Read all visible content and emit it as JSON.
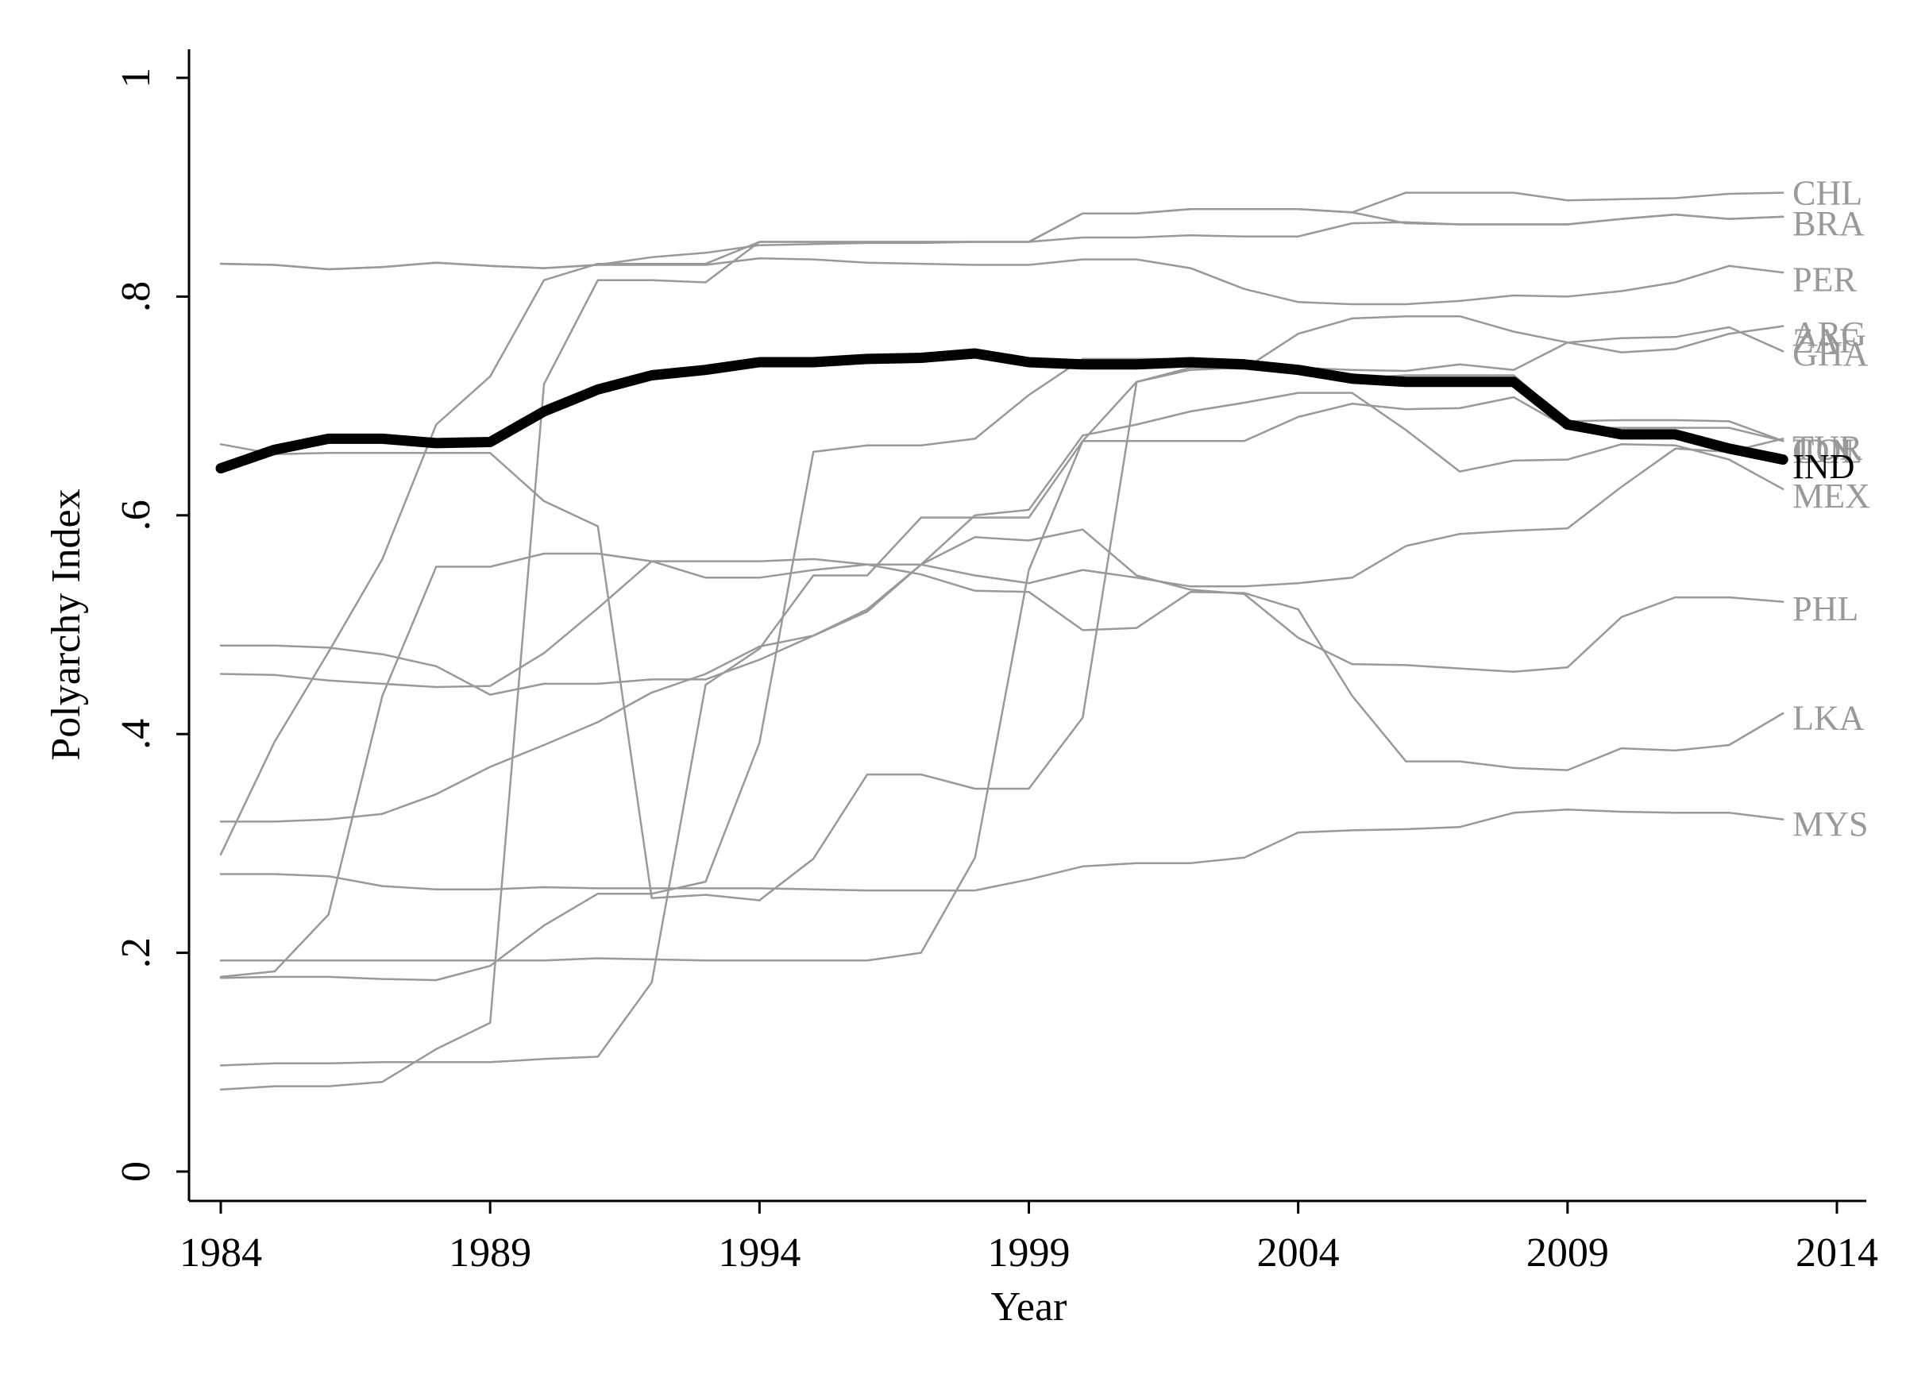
{
  "chart_data": {
    "type": "line",
    "xlabel": "Year",
    "ylabel": "Polyarchy Index",
    "xlim": [
      1984,
      2014
    ],
    "ylim": [
      0,
      1
    ],
    "x_ticks": [
      1984,
      1989,
      1994,
      1999,
      2004,
      2009,
      2014
    ],
    "y_ticks": [
      0,
      0.2,
      0.4,
      0.6,
      0.8,
      1
    ],
    "y_tick_labels": [
      "0",
      ".2",
      ".4",
      ".6",
      ".8",
      "1"
    ],
    "grid": false,
    "legend": "none",
    "highlight_color": "#000000",
    "other_color": "#999999",
    "x": [
      1984,
      1985,
      1986,
      1987,
      1988,
      1989,
      1990,
      1991,
      1992,
      1993,
      1994,
      1995,
      1996,
      1997,
      1998,
      1999,
      2000,
      2001,
      2002,
      2003,
      2004,
      2005,
      2006,
      2007,
      2008,
      2009,
      2010,
      2011,
      2012,
      2013
    ],
    "series": [
      {
        "name": "IND",
        "highlight": true,
        "values": [
          0.643,
          0.66,
          0.67,
          0.67,
          0.666,
          0.667,
          0.695,
          0.715,
          0.728,
          0.733,
          0.74,
          0.74,
          0.743,
          0.744,
          0.748,
          0.74,
          0.738,
          0.738,
          0.74,
          0.738,
          0.733,
          0.725,
          0.722,
          0.722,
          0.722,
          0.683,
          0.674,
          0.674,
          0.661,
          0.651
        ]
      },
      {
        "name": "CHL",
        "values": [
          0.29,
          0.393,
          0.475,
          0.56,
          0.683,
          0.727,
          0.815,
          0.83,
          0.83,
          0.83,
          0.85,
          0.85,
          0.85,
          0.85,
          0.85,
          0.85,
          0.876,
          0.876,
          0.88,
          0.88,
          0.88,
          0.877,
          0.895,
          0.895,
          0.895,
          0.888,
          0.889,
          0.89,
          0.894,
          0.895
        ]
      },
      {
        "name": "BRA",
        "values": [
          0.178,
          0.183,
          0.235,
          0.435,
          0.553,
          0.553,
          0.565,
          0.565,
          0.558,
          0.543,
          0.543,
          0.55,
          0.555,
          0.555,
          0.545,
          0.538,
          0.55,
          0.543,
          0.535,
          0.535,
          0.538,
          0.543,
          0.572,
          0.583,
          0.586,
          0.588,
          0.626,
          0.661,
          0.658,
          0.67
        ]
      },
      {
        "name": "PER",
        "values": [
          0.272,
          0.272,
          0.27,
          0.261,
          0.258,
          0.258,
          0.26,
          0.259,
          0.259,
          0.259,
          0.259,
          0.258,
          0.257,
          0.257,
          0.257,
          0.267,
          0.279,
          0.282,
          0.282,
          0.287,
          0.31,
          0.312,
          0.313,
          0.315,
          0.328,
          0.331,
          0.329,
          0.328,
          0.328,
          0.322
        ]
      },
      {
        "name": "ARG",
        "values": [
          0.83,
          0.829,
          0.825,
          0.827,
          0.831,
          0.828,
          0.826,
          0.829,
          0.836,
          0.84,
          0.847,
          0.848,
          0.849,
          0.849,
          0.85,
          0.85,
          0.854,
          0.854,
          0.856,
          0.855,
          0.855,
          0.867,
          0.868,
          0.866,
          0.866,
          0.866,
          0.871,
          0.875,
          0.871,
          0.873
        ]
      },
      {
        "name": "ZAF",
        "values": [
          0.32,
          0.32,
          0.322,
          0.327,
          0.345,
          0.37,
          0.39,
          0.411,
          0.438,
          0.455,
          0.48,
          0.49,
          0.512,
          0.555,
          0.58,
          0.577,
          0.587,
          0.545,
          0.532,
          0.528,
          0.488,
          0.464,
          0.463,
          0.46,
          0.457,
          0.461,
          0.507,
          0.525,
          0.525,
          0.521
        ]
      },
      {
        "name": "GHA",
        "values": [
          0.075,
          0.078,
          0.078,
          0.082,
          0.112,
          0.136,
          0.72,
          0.815,
          0.815,
          0.813,
          0.85,
          0.85,
          0.85,
          0.85,
          0.85,
          0.85,
          0.876,
          0.876,
          0.88,
          0.88,
          0.88,
          0.877,
          0.867,
          0.866,
          0.866,
          0.866,
          0.871,
          0.875,
          0.871,
          0.873
        ]
      },
      {
        "name": "COL",
        "values": [
          0.455,
          0.454,
          0.449,
          0.446,
          0.443,
          0.444,
          0.474,
          0.515,
          0.558,
          0.558,
          0.558,
          0.56,
          0.555,
          0.546,
          0.531,
          0.53,
          0.495,
          0.497,
          0.53,
          0.529,
          0.514,
          0.435,
          0.375,
          0.375,
          0.369,
          0.367,
          0.387,
          0.385,
          0.39,
          0.419
        ]
      },
      {
        "name": "IDN",
        "values": [
          0.193,
          0.193,
          0.193,
          0.193,
          0.193,
          0.193,
          0.193,
          0.195,
          0.194,
          0.193,
          0.193,
          0.193,
          0.193,
          0.2,
          0.287,
          0.55,
          0.668,
          0.722,
          0.735,
          0.734,
          0.766,
          0.78,
          0.782,
          0.782,
          0.768,
          0.758,
          0.749,
          0.752,
          0.766,
          0.773
        ]
      },
      {
        "name": "TUR",
        "values": [
          0.665,
          0.656,
          0.657,
          0.657,
          0.657,
          0.657,
          0.613,
          0.59,
          0.25,
          0.253,
          0.248,
          0.286,
          0.363,
          0.363,
          0.35,
          0.35,
          0.415,
          0.722,
          0.733,
          0.735,
          0.735,
          0.733,
          0.732,
          0.738,
          0.733,
          0.758,
          0.762,
          0.763,
          0.772,
          0.75
        ]
      },
      {
        "name": "MEX",
        "values": [
          0.481,
          0.481,
          0.479,
          0.473,
          0.462,
          0.436,
          0.446,
          0.446,
          0.45,
          0.45,
          0.468,
          0.49,
          0.514,
          0.555,
          0.6,
          0.605,
          0.673,
          0.683,
          0.695,
          0.703,
          0.712,
          0.712,
          0.678,
          0.64,
          0.65,
          0.651,
          0.665,
          0.664,
          0.651,
          0.624
        ]
      },
      {
        "name": "PHL",
        "values": [
          0.177,
          0.178,
          0.178,
          0.176,
          0.175,
          0.188,
          0.225,
          0.254,
          0.254,
          0.265,
          0.392,
          0.658,
          0.664,
          0.664,
          0.67,
          0.71,
          0.743,
          0.743,
          0.743,
          0.742,
          0.73,
          0.725,
          0.728,
          0.728,
          0.728,
          0.686,
          0.687,
          0.687,
          0.686,
          0.668
        ]
      },
      {
        "name": "LKA",
        "values": [
          0.097,
          0.099,
          0.099,
          0.1,
          0.1,
          0.1,
          0.103,
          0.105,
          0.173,
          0.445,
          0.478,
          0.545,
          0.545,
          0.598,
          0.598,
          0.598,
          0.668,
          0.668,
          0.668,
          0.668,
          0.69,
          0.702,
          0.697,
          0.698,
          0.708,
          0.68,
          0.68,
          0.68,
          0.68,
          0.668
        ]
      },
      {
        "name": "MYS",
        "values": [
          0.83,
          0.829,
          0.825,
          0.827,
          0.831,
          0.828,
          0.826,
          0.829,
          0.829,
          0.829,
          0.835,
          0.834,
          0.831,
          0.83,
          0.829,
          0.829,
          0.834,
          0.834,
          0.826,
          0.807,
          0.795,
          0.793,
          0.793,
          0.796,
          0.801,
          0.8,
          0.805,
          0.813,
          0.828,
          0.822
        ]
      }
    ],
    "end_labels": [
      {
        "text": "CHL",
        "y": 0.895,
        "highlight": false
      },
      {
        "text": "BRA",
        "y": 0.867,
        "highlight": false
      },
      {
        "text": "PER",
        "y": 0.816,
        "highlight": false
      },
      {
        "text": "ARG",
        "y": 0.766,
        "highlight": false
      },
      {
        "text": "ZAF",
        "y": 0.76,
        "highlight": false
      },
      {
        "text": "GHA",
        "y": 0.748,
        "highlight": false
      },
      {
        "text": "TUR",
        "y": 0.662,
        "highlight": false
      },
      {
        "text": "COL",
        "y": 0.659,
        "highlight": false
      },
      {
        "text": "IDN",
        "y": 0.659,
        "highlight": false
      },
      {
        "text": "IND",
        "y": 0.645,
        "highlight": true
      },
      {
        "text": "MEX",
        "y": 0.618,
        "highlight": false
      },
      {
        "text": "PHL",
        "y": 0.515,
        "highlight": false
      },
      {
        "text": "LKA",
        "y": 0.415,
        "highlight": false
      },
      {
        "text": "MYS",
        "y": 0.318,
        "highlight": false
      }
    ]
  }
}
